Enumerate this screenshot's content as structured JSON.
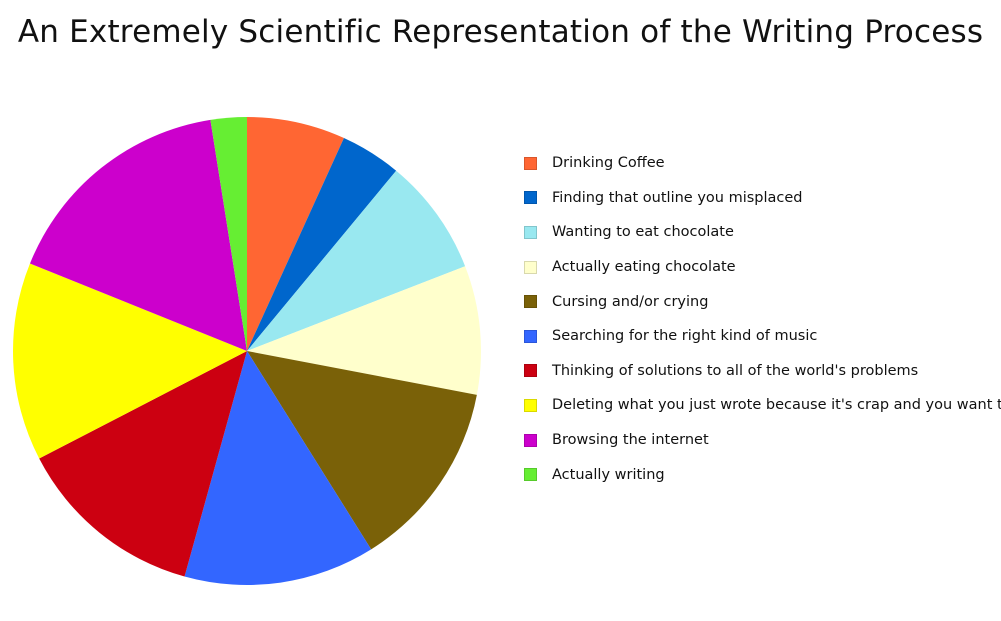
{
  "chart_data": {
    "type": "pie",
    "title": "An Extremely Scientific Representation of the Writing Process",
    "legend_position": "right",
    "start_angle_deg": 0,
    "direction": "clockwise",
    "slices": [
      {
        "label": "Drinking Coffee",
        "value": 6.8,
        "color": "#ff6633"
      },
      {
        "label": "Finding that outline you misplaced",
        "value": 4.2,
        "color": "#0066cc"
      },
      {
        "label": "Wanting to eat chocolate",
        "value": 8.1,
        "color": "#99e8f0"
      },
      {
        "label": "Actually eating chocolate",
        "value": 8.9,
        "color": "#ffffcc"
      },
      {
        "label": "Cursing and/or crying",
        "value": 13.1,
        "color": "#7a6108"
      },
      {
        "label": "Searching for the right kind of music",
        "value": 13.2,
        "color": "#3366ff"
      },
      {
        "label": "Thinking of solutions to all of the world's problems",
        "value": 13.1,
        "color": "#cc0011"
      },
      {
        "label": "Deleting what you just wrote because it's crap and you want to die",
        "value": 13.7,
        "color": "#ffff00"
      },
      {
        "label": "Browsing the internet",
        "value": 16.4,
        "color": "#cc00cc"
      },
      {
        "label": "Actually writing",
        "value": 2.5,
        "color": "#66ee33"
      }
    ]
  }
}
